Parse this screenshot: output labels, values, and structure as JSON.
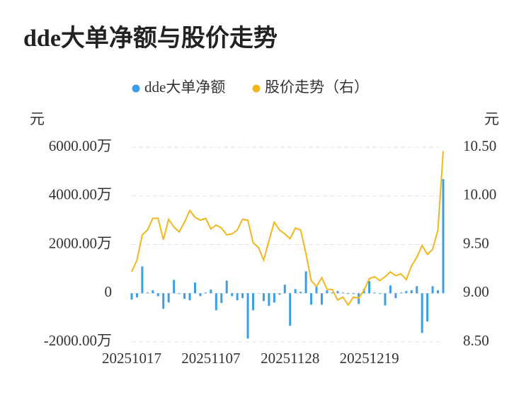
{
  "chart_data": {
    "type": "bar",
    "title": "dde大单净额与股价走势",
    "ylabel": "元",
    "y2label": "元",
    "categories": [
      "20251017",
      null,
      null,
      null,
      null,
      null,
      null,
      null,
      null,
      null,
      null,
      null,
      null,
      null,
      null,
      "20251107",
      null,
      null,
      null,
      null,
      null,
      null,
      null,
      null,
      null,
      null,
      null,
      null,
      null,
      null,
      "20251128",
      null,
      null,
      null,
      null,
      null,
      null,
      null,
      null,
      null,
      null,
      null,
      null,
      null,
      null,
      "20251219",
      null,
      null,
      null,
      null,
      null,
      null,
      null,
      null,
      null,
      null,
      null,
      null,
      null,
      null
    ],
    "series": [
      {
        "name": "dde大单净额",
        "type": "bar",
        "color": "#3a9fe6",
        "values": [
          -260,
          -170,
          1100,
          30,
          120,
          -120,
          -640,
          -380,
          550,
          -30,
          -230,
          -290,
          440,
          -120,
          30,
          150,
          -700,
          -400,
          520,
          -120,
          -290,
          -200,
          -1860,
          -700,
          -10,
          -320,
          -520,
          -380,
          -60,
          350,
          -1340,
          170,
          60,
          900,
          -470,
          290,
          -470,
          120,
          30,
          90,
          30,
          -30,
          -30,
          -440,
          170,
          500,
          30,
          -30,
          -500,
          320,
          -200,
          30,
          90,
          120,
          290,
          -1630,
          -1160,
          290,
          120,
          4690
        ]
      },
      {
        "name": "股价走势（右）",
        "type": "line",
        "axis": "y2",
        "color": "#f2b71c",
        "values": [
          9.22,
          9.34,
          9.6,
          9.65,
          9.77,
          9.77,
          9.55,
          9.76,
          9.68,
          9.63,
          9.73,
          9.85,
          9.78,
          9.75,
          9.77,
          9.66,
          9.7,
          9.67,
          9.6,
          9.61,
          9.65,
          9.76,
          9.75,
          9.52,
          9.47,
          9.34,
          9.54,
          9.73,
          9.65,
          9.61,
          9.56,
          9.67,
          9.65,
          9.41,
          9.13,
          9.07,
          9.16,
          9.04,
          9.04,
          8.93,
          8.96,
          8.88,
          8.96,
          8.95,
          9.03,
          9.15,
          9.17,
          9.13,
          9.17,
          9.22,
          9.18,
          9.2,
          9.14,
          9.28,
          9.37,
          9.49,
          9.4,
          9.45,
          9.65,
          10.46
        ]
      }
    ],
    "ylim": [
      -2000,
      6000
    ],
    "yticks": [
      {
        "value": -2000,
        "label": "-2000.00万"
      },
      0,
      {
        "value": 2000,
        "label": "2000.00万"
      },
      {
        "value": 4000,
        "label": "4000.00万"
      },
      {
        "value": 6000,
        "label": "6000.00万"
      }
    ],
    "y2lim": [
      8.5,
      10.5
    ],
    "y2ticks": [
      {
        "value": 8.5,
        "label": "8.50"
      },
      {
        "value": 9,
        "label": "9.00"
      },
      {
        "value": 9.5,
        "label": "9.50"
      },
      {
        "value": 10,
        "label": "10.00"
      },
      {
        "value": 10.5,
        "label": "10.50"
      }
    ],
    "grid": true
  }
}
